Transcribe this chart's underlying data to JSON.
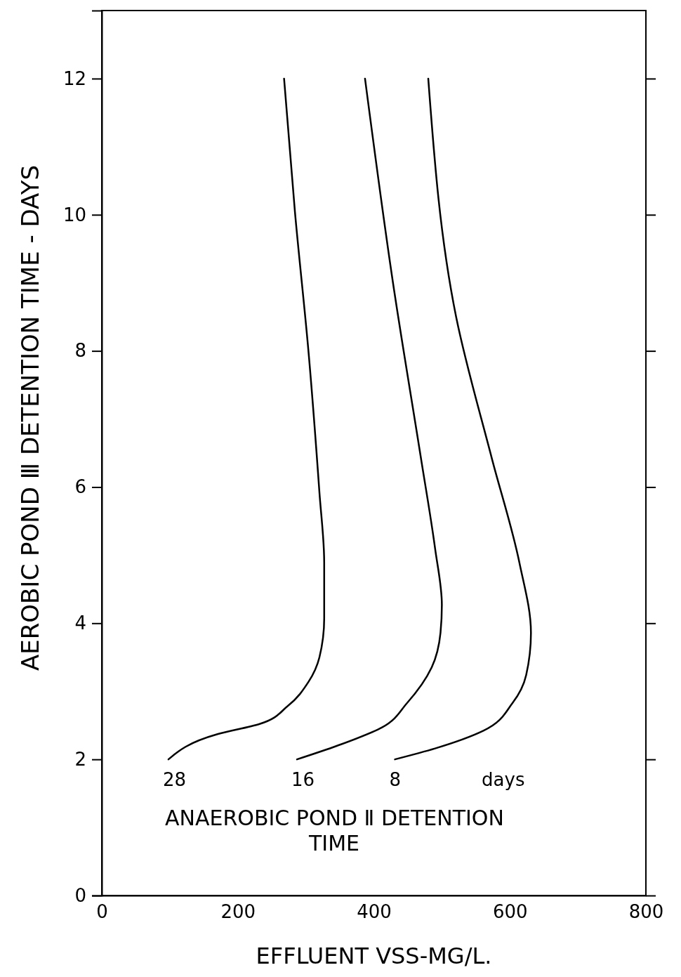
{
  "chart_data": {
    "type": "line",
    "xlabel": "EFFLUENT VSS-MG/L.",
    "ylabel": "AEROBIC POND Ⅲ  DETENTION TIME - DAYS",
    "xlim": [
      0,
      800
    ],
    "ylim": [
      0,
      13
    ],
    "xticks": [
      0,
      200,
      400,
      600,
      800
    ],
    "yticks": [
      0,
      2,
      4,
      6,
      8,
      10,
      12
    ],
    "line_style": "solid",
    "series": [
      {
        "name": "28",
        "color": "#000000",
        "x": [
          98,
          170,
          232,
          273,
          304,
          320,
          327,
          327,
          320,
          304,
          284,
          268
        ],
        "values": [
          2.0,
          2.37,
          2.52,
          2.78,
          3.14,
          3.5,
          4.07,
          4.89,
          5.92,
          7.98,
          10.04,
          12
        ]
      },
      {
        "name": "16",
        "color": "#000000",
        "x": [
          287,
          346,
          412,
          449,
          485,
          498,
          500,
          490,
          469,
          428,
          387
        ],
        "values": [
          2.0,
          2.2,
          2.47,
          2.83,
          3.35,
          3.86,
          4.27,
          5.1,
          6.44,
          9.01,
          12
        ]
      },
      {
        "name": "8",
        "color": "#000000",
        "x": [
          431,
          490,
          561,
          604,
          624,
          631,
          614,
          573,
          521,
          480
        ],
        "values": [
          2.0,
          2.16,
          2.42,
          2.83,
          3.24,
          3.86,
          4.89,
          6.44,
          8.5,
          12
        ]
      }
    ],
    "annotations": [
      "days",
      "ANAEROBIC POND Ⅱ DETENTION TIME"
    ]
  }
}
